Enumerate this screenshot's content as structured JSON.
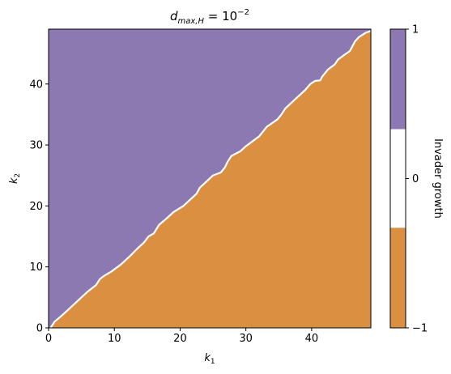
{
  "chart_data": {
    "type": "heatmap",
    "title": "d_{max,H} = 10^{-2}",
    "title_parts": {
      "base": "d",
      "sub": "max,H",
      "eq": " = 10",
      "sup": "−2"
    },
    "xlabel": {
      "base": "k",
      "sub": "1"
    },
    "ylabel": {
      "base": "k",
      "sub": "2"
    },
    "xlim": [
      0,
      49
    ],
    "ylim": [
      0,
      49
    ],
    "xticks": [
      0,
      10,
      20,
      30,
      40
    ],
    "yticks": [
      0,
      10,
      20,
      30,
      40
    ],
    "regions": [
      {
        "name": "upper-left",
        "value": 1,
        "color": "#8c79b2"
      },
      {
        "name": "lower-right",
        "value": -1,
        "color": "#db8f41"
      }
    ],
    "boundary": [
      [
        0.3,
        0
      ],
      [
        0.9,
        1
      ],
      [
        2,
        2
      ],
      [
        3,
        3
      ],
      [
        4,
        4
      ],
      [
        5,
        5
      ],
      [
        6,
        6
      ],
      [
        7.2,
        7
      ],
      [
        7.8,
        8
      ],
      [
        8.4,
        8.5
      ],
      [
        9.5,
        9.2
      ],
      [
        11,
        10.4
      ],
      [
        12.4,
        11.8
      ],
      [
        13.5,
        13
      ],
      [
        14.5,
        14
      ],
      [
        15.2,
        15
      ],
      [
        16,
        15.5
      ],
      [
        16.8,
        16.9
      ],
      [
        18,
        18
      ],
      [
        19,
        19
      ],
      [
        20.5,
        20
      ],
      [
        21.5,
        21
      ],
      [
        22.5,
        22
      ],
      [
        23,
        23
      ],
      [
        24,
        24
      ],
      [
        25,
        25
      ],
      [
        26.2,
        25.5
      ],
      [
        26.8,
        26.3
      ],
      [
        27.2,
        27.2
      ],
      [
        27.8,
        28.2
      ],
      [
        28.5,
        28.6
      ],
      [
        29.2,
        29
      ],
      [
        30,
        29.8
      ],
      [
        31,
        30.6
      ],
      [
        32,
        31.4
      ],
      [
        32.6,
        32.2
      ],
      [
        33.2,
        33
      ],
      [
        34,
        33.6
      ],
      [
        34.8,
        34.2
      ],
      [
        35.4,
        35
      ],
      [
        36,
        36
      ],
      [
        37,
        37
      ],
      [
        38,
        38
      ],
      [
        39,
        39
      ],
      [
        39.8,
        40
      ],
      [
        40.5,
        40.5
      ],
      [
        41.3,
        40.6
      ],
      [
        41.6,
        41.2
      ],
      [
        42.5,
        42.4
      ],
      [
        43.5,
        43.2
      ],
      [
        44,
        44
      ],
      [
        45,
        44.8
      ],
      [
        45.8,
        45.4
      ],
      [
        46.2,
        46.2
      ],
      [
        46.6,
        47
      ],
      [
        47.2,
        47.7
      ],
      [
        48.2,
        48.4
      ],
      [
        49,
        48.7
      ]
    ],
    "colorbar": {
      "label": "Invader growth",
      "ticks": [
        1,
        0,
        -1
      ],
      "segments": [
        {
          "from": 0.33,
          "to": 1,
          "color": "#8c79b2"
        },
        {
          "from": -0.33,
          "to": 0.33,
          "color": "#ffffff"
        },
        {
          "from": -1,
          "to": -0.33,
          "color": "#db8f41"
        }
      ]
    }
  }
}
